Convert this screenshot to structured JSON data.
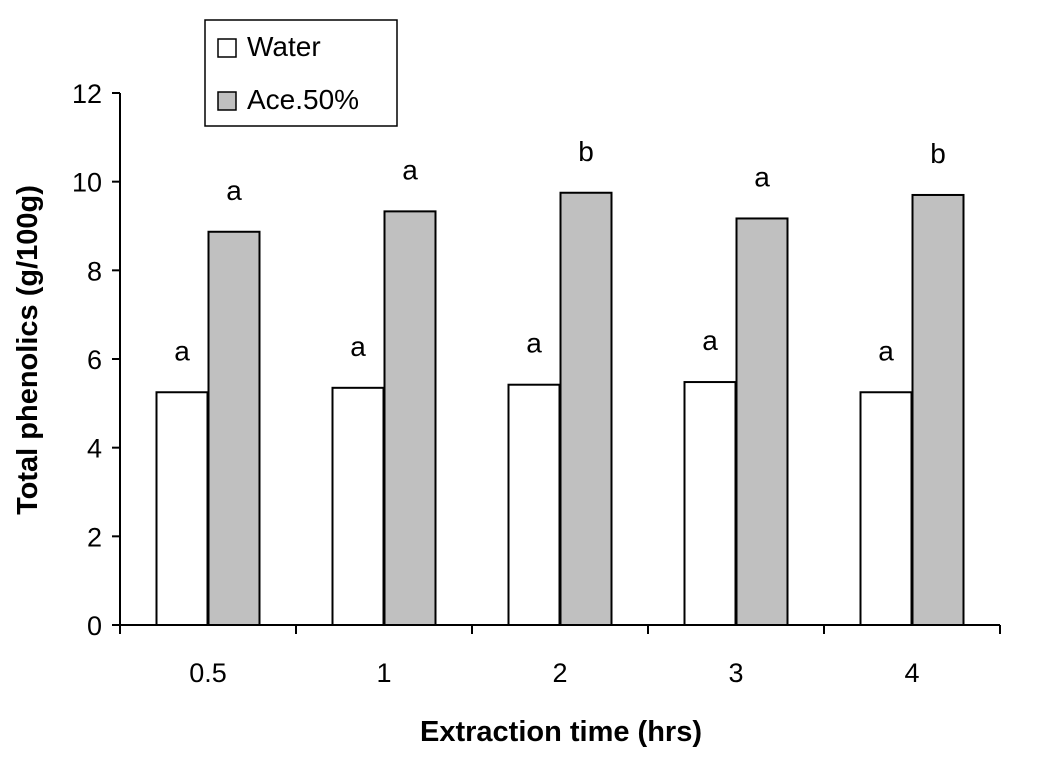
{
  "chart_data": {
    "type": "bar",
    "xlabel": "Extraction time (hrs)",
    "ylabel": "Total phenolics (g/100g)",
    "categories": [
      "0.5",
      "1",
      "2",
      "3",
      "4"
    ],
    "ylim": [
      0,
      12
    ],
    "yticks": [
      "0",
      "2",
      "4",
      "6",
      "8",
      "10",
      "12"
    ],
    "grid": false,
    "legend_position": "top-left",
    "series": [
      {
        "name": "Water",
        "color": "#ffffff",
        "values": [
          5.25,
          5.35,
          5.42,
          5.48,
          5.25
        ],
        "labels": [
          "a",
          "a",
          "a",
          "a",
          "a"
        ]
      },
      {
        "name": "Ace.50%",
        "color": "#c0c0c0",
        "values": [
          8.87,
          9.33,
          9.75,
          9.17,
          9.7
        ],
        "labels": [
          "a",
          "a",
          "b",
          "a",
          "b"
        ]
      }
    ]
  }
}
